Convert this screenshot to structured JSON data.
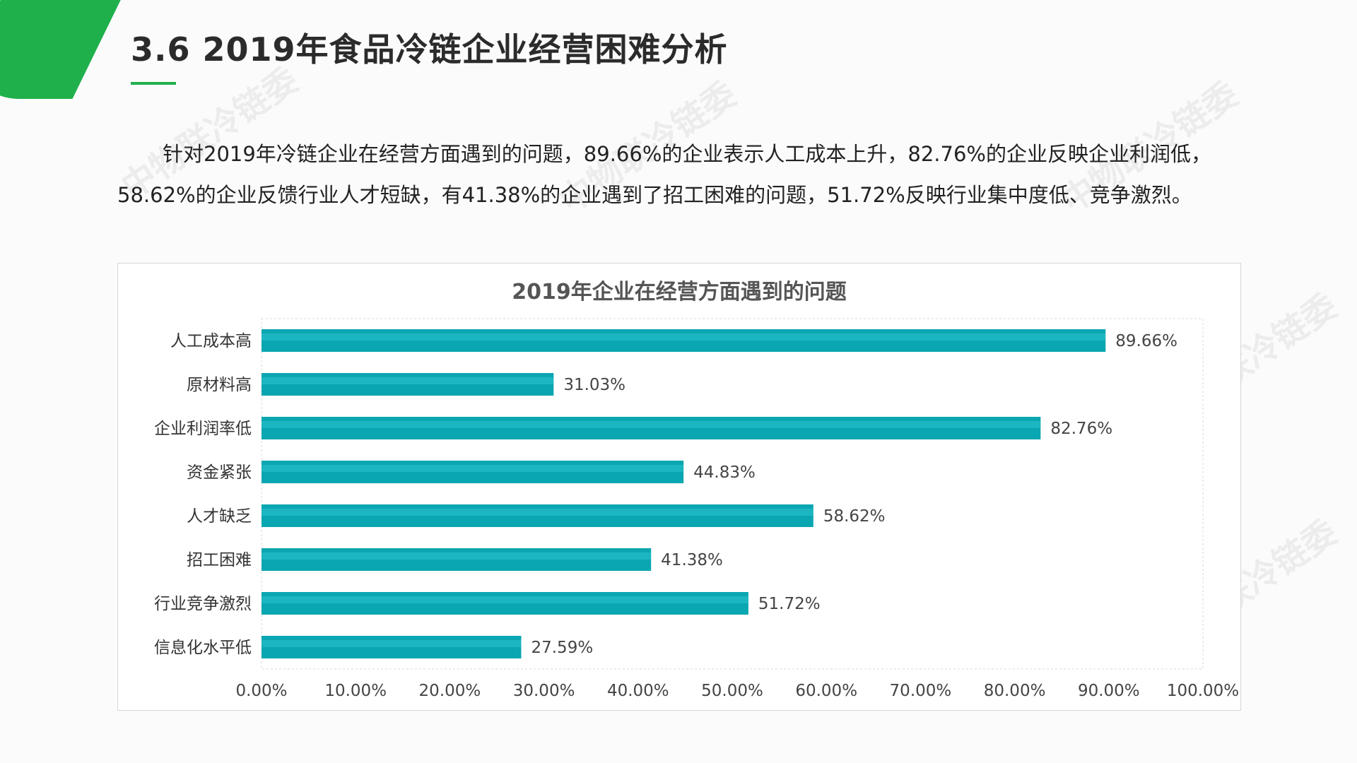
{
  "header": {
    "title": "3.6 2019年食品冷链企业经营困难分析",
    "accent_color": "#1fb04b"
  },
  "watermark": {
    "text": "中物联冷链委"
  },
  "intro": {
    "text": "针对2019年冷链企业在经营方面遇到的问题，89.66%的企业表示人工成本上升，82.76%的企业反映企业利润低，58.62%的企业反馈行业人才短缺，有41.38%的企业遇到了招工困难的问题，51.72%反映行业集中度低、竞争激烈。"
  },
  "chart_data": {
    "type": "bar",
    "orientation": "horizontal",
    "title": "2019年企业在经营方面遇到的问题",
    "categories": [
      "人工成本高",
      "原材料高",
      "企业利润率低",
      "资金紧张",
      "人才缺乏",
      "招工困难",
      "行业竞争激烈",
      "信息化水平低"
    ],
    "values": [
      89.66,
      31.03,
      82.76,
      44.83,
      58.62,
      41.38,
      51.72,
      27.59
    ],
    "value_labels": [
      "89.66%",
      "31.03%",
      "82.76%",
      "44.83%",
      "58.62%",
      "41.38%",
      "51.72%",
      "27.59%"
    ],
    "x_ticks": [
      "0.00%",
      "10.00%",
      "20.00%",
      "30.00%",
      "40.00%",
      "50.00%",
      "60.00%",
      "70.00%",
      "80.00%",
      "90.00%",
      "100.00%"
    ],
    "xlim": [
      0,
      100
    ],
    "grid": false,
    "legend": "none",
    "bar_color": "#0aa6b1",
    "bar_highlight": "#2cc3cc"
  }
}
